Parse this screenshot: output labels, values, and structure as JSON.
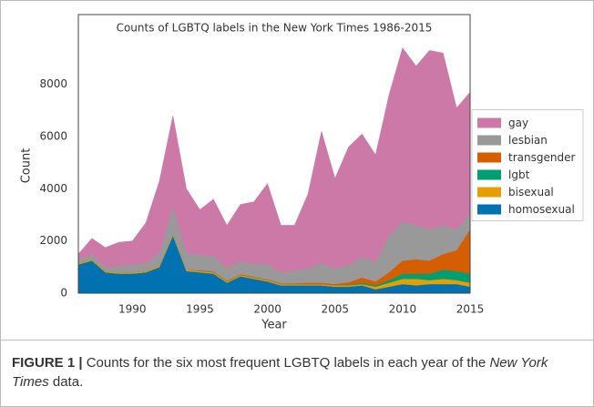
{
  "chart_data": {
    "type": "stacked-area",
    "title": "Counts of LGBTQ labels in the New York Times 1986-2015",
    "x_label": "Year",
    "y_label": "Count",
    "x": [
      1986,
      1987,
      1988,
      1989,
      1990,
      1991,
      1992,
      1993,
      1994,
      1995,
      1996,
      1997,
      1998,
      1999,
      2000,
      2001,
      2002,
      2003,
      2004,
      2005,
      2006,
      2007,
      2008,
      2009,
      2010,
      2011,
      2012,
      2013,
      2014,
      2015
    ],
    "series": [
      {
        "name": "homosexual",
        "color": "#0072b2",
        "values": [
          1100,
          1250,
          800,
          750,
          750,
          800,
          1000,
          2200,
          850,
          800,
          750,
          400,
          650,
          550,
          450,
          300,
          300,
          300,
          300,
          250,
          250,
          300,
          150,
          250,
          350,
          300,
          350,
          350,
          350,
          250
        ]
      },
      {
        "name": "bisexual",
        "color": "#e69f00",
        "values": [
          50,
          50,
          50,
          50,
          50,
          50,
          50,
          50,
          50,
          50,
          50,
          50,
          50,
          50,
          50,
          50,
          50,
          50,
          50,
          50,
          50,
          50,
          100,
          150,
          200,
          250,
          150,
          200,
          150,
          150
        ]
      },
      {
        "name": "lgbt",
        "color": "#009e73",
        "values": [
          0,
          0,
          0,
          0,
          0,
          0,
          0,
          0,
          0,
          0,
          0,
          0,
          0,
          0,
          0,
          0,
          0,
          0,
          0,
          0,
          20,
          50,
          50,
          100,
          200,
          200,
          250,
          350,
          350,
          350
        ]
      },
      {
        "name": "transgender",
        "color": "#d55e00",
        "values": [
          0,
          0,
          0,
          0,
          0,
          0,
          0,
          0,
          0,
          30,
          30,
          30,
          30,
          30,
          30,
          30,
          30,
          50,
          50,
          50,
          100,
          200,
          150,
          300,
          500,
          550,
          500,
          600,
          800,
          1700
        ]
      },
      {
        "name": "lesbian",
        "color": "#999999",
        "values": [
          150,
          200,
          150,
          250,
          300,
          300,
          500,
          1100,
          650,
          600,
          600,
          500,
          500,
          500,
          600,
          400,
          500,
          550,
          750,
          600,
          650,
          800,
          750,
          1400,
          1500,
          1300,
          1200,
          1100,
          800,
          600
        ]
      },
      {
        "name": "gay",
        "color": "#cc79a7",
        "values": [
          200,
          600,
          750,
          900,
          900,
          1550,
          2750,
          3450,
          2450,
          1720,
          2170,
          1620,
          2170,
          2370,
          3070,
          1820,
          1720,
          2850,
          5050,
          3450,
          4530,
          4700,
          4100,
          5400,
          6650,
          6100,
          6850,
          6600,
          4650,
          4650
        ]
      }
    ],
    "xlim": [
      1986,
      2015
    ],
    "xticks": [
      1990,
      1995,
      2000,
      2005,
      2010,
      2015
    ],
    "ylim": [
      0,
      9800
    ],
    "yticks": [
      0,
      2000,
      4000,
      6000,
      8000
    ],
    "grid": false,
    "legend": "center right"
  },
  "caption": {
    "label": "FIGURE 1 |",
    "text": "Counts for the six most frequent LGBTQ labels in each year of the",
    "italic": "New York Times",
    "tail": "data."
  }
}
